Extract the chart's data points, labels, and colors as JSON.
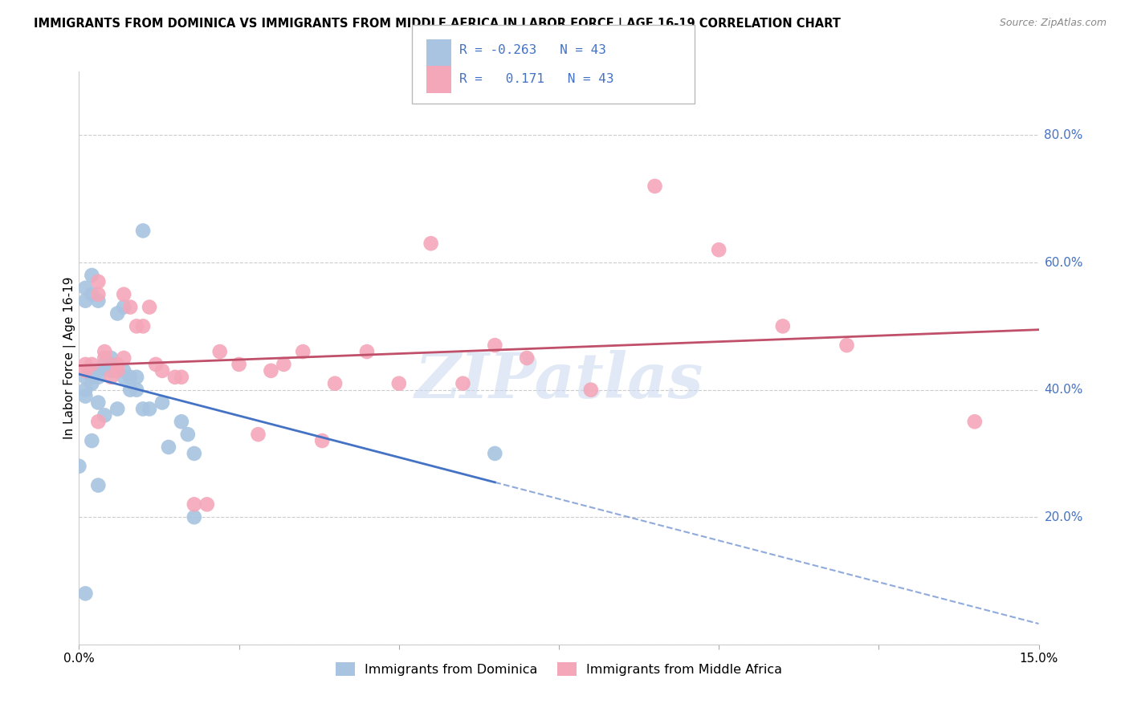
{
  "title": "IMMIGRANTS FROM DOMINICA VS IMMIGRANTS FROM MIDDLE AFRICA IN LABOR FORCE | AGE 16-19 CORRELATION CHART",
  "source": "Source: ZipAtlas.com",
  "ylabel": "In Labor Force | Age 16-19",
  "xlim": [
    0.0,
    0.15
  ],
  "ylim": [
    0.0,
    0.9
  ],
  "ytick_labels": [
    "",
    "20.0%",
    "40.0%",
    "60.0%",
    "80.0%"
  ],
  "ytick_values": [
    0.0,
    0.2,
    0.4,
    0.6,
    0.8
  ],
  "xtick_labels": [
    "0.0%",
    "",
    "",
    "",
    "",
    "",
    "15.0%"
  ],
  "xtick_values": [
    0.0,
    0.025,
    0.05,
    0.075,
    0.1,
    0.125,
    0.15
  ],
  "r_blue": -0.263,
  "n_blue": 43,
  "r_pink": 0.171,
  "n_pink": 43,
  "color_blue": "#a8c4e0",
  "color_pink": "#f4a7b9",
  "line_blue": "#4472c4",
  "line_pink": "#c0506a",
  "legend_label_blue": "Immigrants from Dominica",
  "legend_label_pink": "Immigrants from Middle Africa",
  "watermark": "ZIPatlas",
  "blue_x": [
    0.0,
    0.001,
    0.001,
    0.001,
    0.001,
    0.001,
    0.002,
    0.002,
    0.002,
    0.002,
    0.002,
    0.003,
    0.003,
    0.003,
    0.003,
    0.004,
    0.004,
    0.005,
    0.005,
    0.005,
    0.006,
    0.006,
    0.006,
    0.007,
    0.007,
    0.007,
    0.008,
    0.008,
    0.009,
    0.009,
    0.01,
    0.01,
    0.011,
    0.013,
    0.014,
    0.016,
    0.017,
    0.018,
    0.018,
    0.002,
    0.003,
    0.065,
    0.001
  ],
  "blue_y": [
    0.28,
    0.56,
    0.54,
    0.42,
    0.4,
    0.39,
    0.55,
    0.58,
    0.43,
    0.42,
    0.41,
    0.54,
    0.43,
    0.42,
    0.38,
    0.44,
    0.36,
    0.45,
    0.44,
    0.43,
    0.52,
    0.43,
    0.37,
    0.53,
    0.43,
    0.42,
    0.42,
    0.4,
    0.42,
    0.4,
    0.65,
    0.37,
    0.37,
    0.38,
    0.31,
    0.35,
    0.33,
    0.3,
    0.2,
    0.32,
    0.25,
    0.3,
    0.08
  ],
  "pink_x": [
    0.001,
    0.001,
    0.002,
    0.003,
    0.003,
    0.004,
    0.004,
    0.005,
    0.006,
    0.006,
    0.007,
    0.007,
    0.008,
    0.009,
    0.01,
    0.011,
    0.012,
    0.013,
    0.015,
    0.016,
    0.018,
    0.02,
    0.022,
    0.025,
    0.028,
    0.03,
    0.032,
    0.035,
    0.038,
    0.04,
    0.045,
    0.05,
    0.055,
    0.06,
    0.065,
    0.07,
    0.08,
    0.09,
    0.1,
    0.11,
    0.12,
    0.14,
    0.003
  ],
  "pink_y": [
    0.43,
    0.44,
    0.44,
    0.57,
    0.55,
    0.46,
    0.45,
    0.42,
    0.44,
    0.43,
    0.45,
    0.55,
    0.53,
    0.5,
    0.5,
    0.53,
    0.44,
    0.43,
    0.42,
    0.42,
    0.22,
    0.22,
    0.46,
    0.44,
    0.33,
    0.43,
    0.44,
    0.46,
    0.32,
    0.41,
    0.46,
    0.41,
    0.63,
    0.41,
    0.47,
    0.45,
    0.4,
    0.72,
    0.62,
    0.5,
    0.47,
    0.35,
    0.35
  ]
}
